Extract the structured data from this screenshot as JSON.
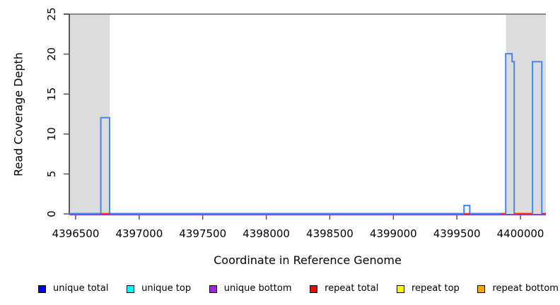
{
  "chart_data": {
    "type": "line",
    "title": "",
    "xlabel": "Coordinate in Reference Genome",
    "ylabel": "Read Coverage Depth",
    "xlim": [
      4396450,
      4400200
    ],
    "ylim": [
      0,
      25
    ],
    "x_ticks": [
      4396500,
      4397000,
      4397500,
      4398000,
      4398500,
      4399000,
      4399500,
      4400000
    ],
    "y_ticks": [
      0,
      5,
      10,
      15,
      20,
      25
    ],
    "grid": false,
    "cutoff_line_y": 25,
    "cutoff_line_color": "#8a8a8a",
    "shade_color": "#dcdcdc",
    "shaded_regions": [
      {
        "x0": 4396450,
        "x1": 4396768
      },
      {
        "x0": 4399886,
        "x1": 4400200
      }
    ],
    "series": [
      {
        "name": "unique total",
        "legend_color": "#0000ff",
        "plot_color": "#4285f4",
        "points": [
          [
            4396450,
            0
          ],
          [
            4396698,
            0
          ],
          [
            4396698,
            12
          ],
          [
            4396767,
            12
          ],
          [
            4396767,
            0
          ],
          [
            4399556,
            0
          ],
          [
            4399556,
            1
          ],
          [
            4399601,
            1
          ],
          [
            4399601,
            0
          ],
          [
            4399884,
            0
          ],
          [
            4399884,
            20
          ],
          [
            4399934,
            20
          ],
          [
            4399934,
            19
          ],
          [
            4399951,
            19
          ],
          [
            4399951,
            0
          ],
          [
            4400095,
            0
          ],
          [
            4400095,
            19
          ],
          [
            4400168,
            19
          ],
          [
            4400168,
            0
          ],
          [
            4400200,
            0
          ]
        ]
      },
      {
        "name": "unique top",
        "legend_color": "#00ffff",
        "plot_color": "#00ffff",
        "points": []
      },
      {
        "name": "unique bottom",
        "legend_color": "#a020f0",
        "plot_color": "#8a3be0",
        "points": [
          [
            4396450,
            0
          ],
          [
            4400200,
            0
          ]
        ]
      },
      {
        "name": "repeat total",
        "legend_color": "#ff0000",
        "plot_color": "#ff2a2a",
        "segments_y": 0,
        "segments": [
          [
            4396692,
            4396773
          ],
          [
            4399556,
            4399601
          ],
          [
            4399844,
            4399884
          ],
          [
            4399951,
            4400095
          ],
          [
            4400168,
            4400200
          ]
        ]
      },
      {
        "name": "repeat top",
        "legend_color": "#ffff00",
        "plot_color": "#ffff00",
        "points": []
      },
      {
        "name": "repeat bottom",
        "legend_color": "#ffa500",
        "plot_color": "#ffa500",
        "points": []
      }
    ],
    "legend_position": "bottom"
  },
  "legend": {
    "items": [
      {
        "label": "unique total",
        "color": "#0000ff"
      },
      {
        "label": "unique top",
        "color": "#00ffff"
      },
      {
        "label": "unique bottom",
        "color": "#a020f0"
      },
      {
        "label": "repeat total",
        "color": "#ff0000"
      },
      {
        "label": "repeat top",
        "color": "#ffff00"
      },
      {
        "label": "repeat bottom",
        "color": "#ffa500"
      }
    ]
  }
}
